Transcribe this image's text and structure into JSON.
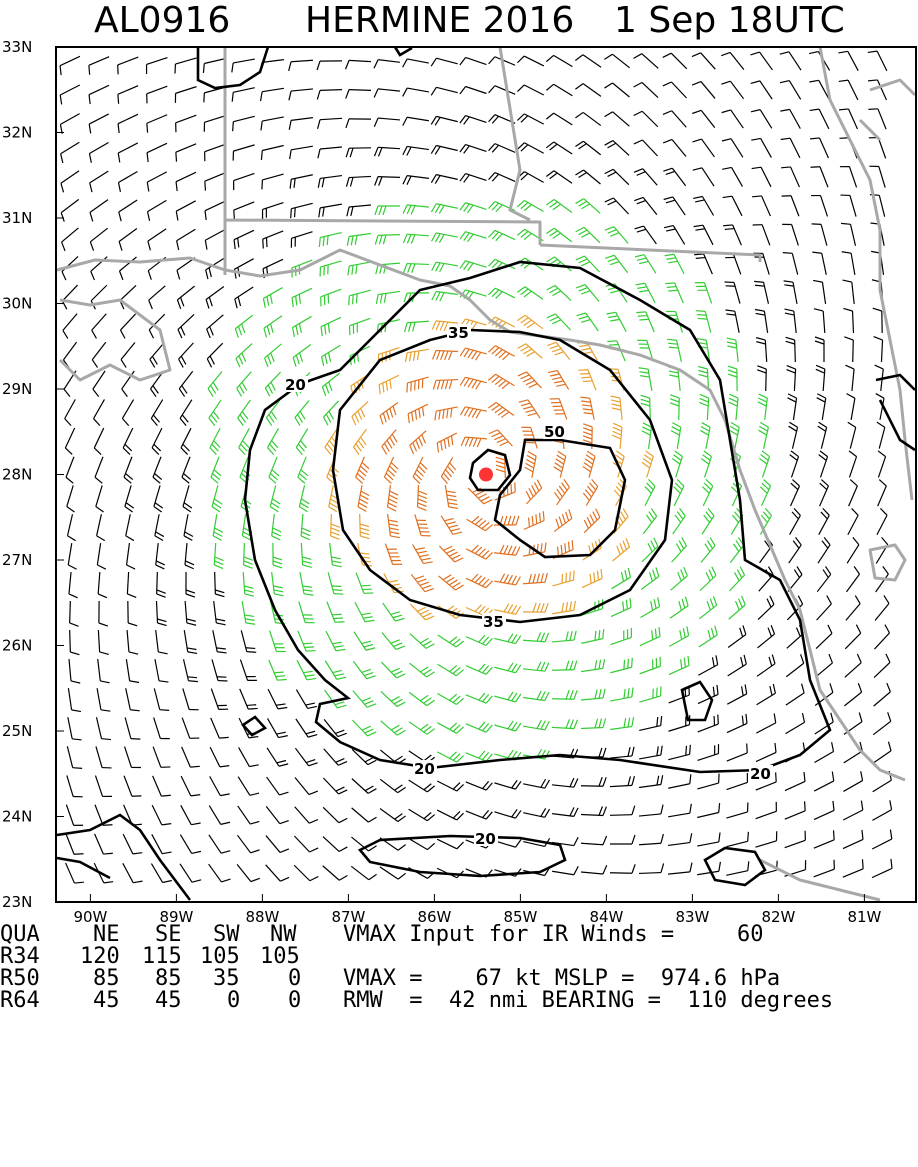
{
  "title": {
    "storm_id": "AL0916",
    "storm_name": "HERMINE 2016",
    "datetime": "1 Sep 18UTC"
  },
  "map": {
    "lat_labels": [
      "33N",
      "32N",
      "31N",
      "30N",
      "29N",
      "28N",
      "27N",
      "26N",
      "25N",
      "24N",
      "23N"
    ],
    "lon_labels": [
      "90W",
      "89W",
      "88W",
      "87W",
      "86W",
      "85W",
      "84W",
      "83W",
      "82W",
      "81W"
    ],
    "lat_range": [
      23,
      33
    ],
    "lon_range": [
      -90.4,
      -80.4
    ],
    "contour_labels": [
      "20",
      "35",
      "50",
      "35",
      "20",
      "20",
      "20"
    ],
    "center": {
      "lat": 28.0,
      "lon": -85.4,
      "color": "#ff3333"
    },
    "colors": {
      "barb_light": "#000000",
      "barb_34kt": "#33cc33",
      "barb_50kt": "#e8a030",
      "barb_64kt": "#e07020",
      "coastline": "#a8a8a8",
      "contour": "#000000"
    }
  },
  "table": {
    "header": [
      "QUA",
      "NE",
      "SE",
      "SW",
      "NW"
    ],
    "rows": [
      [
        "R34",
        "120",
        "115",
        "105",
        "105"
      ],
      [
        "R50",
        "85",
        "85",
        "35",
        "0"
      ],
      [
        "R64",
        "45",
        "45",
        "0",
        "0"
      ]
    ],
    "vmax_input_label": "VMAX Input for IR Winds =",
    "vmax_input_value": "60",
    "vmax_line": "VMAX =    67 kt MSLP =  974.6 hPa",
    "rmw_line": "RMW  =  42 nmi BEARING =  110 degrees"
  }
}
